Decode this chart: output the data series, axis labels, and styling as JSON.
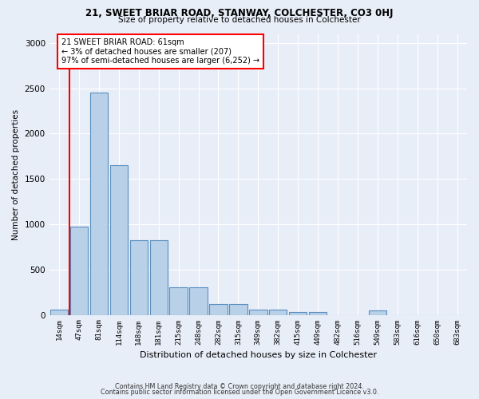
{
  "title1": "21, SWEET BRIAR ROAD, STANWAY, COLCHESTER, CO3 0HJ",
  "title2": "Size of property relative to detached houses in Colchester",
  "xlabel": "Distribution of detached houses by size in Colchester",
  "ylabel": "Number of detached properties",
  "categories": [
    "14sqm",
    "47sqm",
    "81sqm",
    "114sqm",
    "148sqm",
    "181sqm",
    "215sqm",
    "248sqm",
    "282sqm",
    "315sqm",
    "349sqm",
    "382sqm",
    "415sqm",
    "449sqm",
    "482sqm",
    "516sqm",
    "549sqm",
    "583sqm",
    "616sqm",
    "650sqm",
    "683sqm"
  ],
  "values": [
    60,
    975,
    2450,
    1650,
    825,
    825,
    300,
    300,
    120,
    120,
    55,
    55,
    30,
    30,
    0,
    0,
    50,
    0,
    0,
    0,
    0
  ],
  "bar_color": "#b8d0e8",
  "bar_edge_color": "#5a8fc0",
  "property_line_x": 0.5,
  "annotation_box_text": "21 SWEET BRIAR ROAD: 61sqm\n← 3% of detached houses are smaller (207)\n97% of semi-detached houses are larger (6,252) →",
  "footer1": "Contains HM Land Registry data © Crown copyright and database right 2024.",
  "footer2": "Contains public sector information licensed under the Open Government Licence v3.0.",
  "bg_color": "#e8eef8",
  "grid_color": "#ffffff",
  "ylim": [
    0,
    3100
  ],
  "yticks": [
    0,
    500,
    1000,
    1500,
    2000,
    2500,
    3000
  ]
}
